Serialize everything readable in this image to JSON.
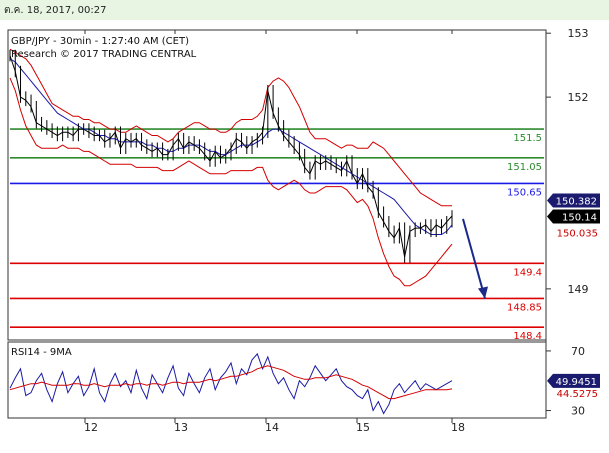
{
  "header": {
    "timestamp": "ต.ค. 18, 2017, 00:27",
    "title": "GBP/JPY - 30min - 1:27:40 AM (CET)",
    "subtitle": "Research © 2017 TRADING CENTRAL"
  },
  "colors": {
    "price": "#000000",
    "bollinger": "#d40000",
    "moving_average": "#1a1aa6",
    "resistance": "#2e8b2e",
    "pivot": "#1a1ae6",
    "support": "#dd0000",
    "forecast_arrow": "#1a2a8a"
  },
  "chart_data": [
    {
      "type": "line",
      "name": "price-panel",
      "title": "GBP/JPY - 30min - 1:27:40 AM (CET)",
      "ylim": [
        148.2,
        153.05
      ],
      "y_ticks": [
        149,
        152,
        153
      ],
      "x_ticks": [
        "12",
        "13",
        "14",
        "15",
        "18"
      ],
      "levels": [
        {
          "label": "151.5",
          "value": 151.5,
          "kind": "resistance"
        },
        {
          "label": "151.05",
          "value": 151.05,
          "kind": "resistance"
        },
        {
          "label": "150.65",
          "value": 150.65,
          "kind": "pivot"
        },
        {
          "label": "149.4",
          "value": 149.4,
          "kind": "support"
        },
        {
          "label": "148.85",
          "value": 148.85,
          "kind": "support"
        },
        {
          "label": "148.4",
          "value": 148.4,
          "kind": "support"
        }
      ],
      "tags": [
        {
          "label": "150.382",
          "value": 150.382,
          "style": "navy"
        },
        {
          "label": "150.14",
          "value": 150.14,
          "style": "black"
        },
        {
          "label": "150.035",
          "value": 150.035,
          "style": "red"
        }
      ],
      "series": [
        {
          "name": "price",
          "values": [
            152.65,
            152.4,
            152.0,
            151.95,
            151.85,
            151.6,
            151.55,
            151.5,
            151.45,
            151.4,
            151.45,
            151.45,
            151.4,
            151.5,
            151.5,
            151.45,
            151.4,
            151.4,
            151.3,
            151.35,
            151.45,
            151.2,
            151.35,
            151.3,
            151.35,
            151.25,
            151.2,
            151.15,
            151.2,
            151.1,
            151.1,
            151.25,
            151.35,
            151.2,
            151.3,
            151.25,
            151.2,
            151.1,
            151.0,
            151.15,
            151.05,
            151.1,
            151.2,
            151.35,
            151.3,
            151.2,
            151.3,
            151.35,
            151.45,
            152.1,
            151.75,
            151.55,
            151.4,
            151.3,
            151.2,
            151.1,
            150.9,
            150.8,
            151.0,
            150.95,
            151.0,
            150.95,
            150.9,
            150.85,
            151.0,
            150.8,
            150.65,
            150.8,
            150.6,
            150.5,
            150.2,
            150.05,
            149.9,
            149.8,
            149.95,
            149.5,
            149.9,
            149.95,
            149.95,
            150.0,
            149.9,
            150.0,
            149.95,
            150.05,
            150.14
          ]
        },
        {
          "name": "bollinger-upper",
          "values": [
            152.75,
            152.7,
            152.65,
            152.6,
            152.5,
            152.35,
            152.2,
            152.05,
            151.9,
            151.85,
            151.8,
            151.75,
            151.7,
            151.7,
            151.65,
            151.65,
            151.6,
            151.6,
            151.55,
            151.5,
            151.5,
            151.45,
            151.45,
            151.5,
            151.55,
            151.5,
            151.45,
            151.4,
            151.4,
            151.35,
            151.3,
            151.35,
            151.45,
            151.5,
            151.55,
            151.6,
            151.6,
            151.55,
            151.5,
            151.5,
            151.45,
            151.45,
            151.5,
            151.6,
            151.65,
            151.65,
            151.65,
            151.7,
            151.8,
            152.15,
            152.25,
            152.3,
            152.25,
            152.15,
            152.0,
            151.85,
            151.65,
            151.45,
            151.35,
            151.35,
            151.35,
            151.3,
            151.25,
            151.2,
            151.25,
            151.25,
            151.2,
            151.2,
            151.2,
            151.3,
            151.25,
            151.2,
            151.1,
            151.0,
            150.9,
            150.8,
            150.7,
            150.6,
            150.5,
            150.45,
            150.4,
            150.35,
            150.3,
            150.3,
            150.3
          ]
        },
        {
          "name": "bollinger-lower",
          "values": [
            152.3,
            152.1,
            151.8,
            151.55,
            151.4,
            151.25,
            151.2,
            151.2,
            151.2,
            151.2,
            151.25,
            151.2,
            151.2,
            151.2,
            151.15,
            151.15,
            151.1,
            151.05,
            151.0,
            150.95,
            150.95,
            150.95,
            150.95,
            150.95,
            150.9,
            150.9,
            150.9,
            150.9,
            150.9,
            150.85,
            150.85,
            150.85,
            150.9,
            150.95,
            151.0,
            150.95,
            150.9,
            150.85,
            150.8,
            150.8,
            150.8,
            150.8,
            150.85,
            150.85,
            150.85,
            150.85,
            150.85,
            150.9,
            150.9,
            150.7,
            150.6,
            150.55,
            150.6,
            150.65,
            150.7,
            150.65,
            150.55,
            150.5,
            150.5,
            150.55,
            150.6,
            150.6,
            150.6,
            150.6,
            150.55,
            150.45,
            150.35,
            150.4,
            150.3,
            150.1,
            149.8,
            149.55,
            149.35,
            149.2,
            149.15,
            149.05,
            149.05,
            149.1,
            149.15,
            149.2,
            149.3,
            149.4,
            149.5,
            149.6,
            149.7
          ]
        },
        {
          "name": "moving-average",
          "values": [
            152.6,
            152.55,
            152.45,
            152.35,
            152.25,
            152.15,
            152.05,
            151.95,
            151.85,
            151.75,
            151.7,
            151.65,
            151.6,
            151.55,
            151.5,
            151.5,
            151.45,
            151.4,
            151.4,
            151.35,
            151.35,
            151.3,
            151.3,
            151.3,
            151.3,
            151.3,
            151.25,
            151.25,
            151.2,
            151.2,
            151.15,
            151.15,
            151.2,
            151.2,
            151.25,
            151.25,
            151.25,
            151.2,
            151.15,
            151.15,
            151.1,
            151.1,
            151.15,
            151.2,
            151.25,
            151.25,
            151.25,
            151.3,
            151.35,
            151.45,
            151.5,
            151.5,
            151.45,
            151.4,
            151.35,
            151.3,
            151.25,
            151.2,
            151.15,
            151.1,
            151.05,
            151.0,
            150.95,
            150.9,
            150.85,
            150.8,
            150.75,
            150.7,
            150.65,
            150.6,
            150.55,
            150.5,
            150.45,
            150.4,
            150.3,
            150.2,
            150.1,
            150.0,
            149.95,
            149.9,
            149.85,
            149.85,
            149.85,
            149.9,
            150.0
          ]
        }
      ],
      "forecast": {
        "from": 150.0,
        "to": 148.85
      }
    },
    {
      "type": "line",
      "name": "rsi-panel",
      "title": "RSI14 - 9MA",
      "ylim": [
        25,
        76
      ],
      "y_ticks": [
        30,
        70
      ],
      "tags": [
        {
          "label": "49.9451",
          "value": 49.9451,
          "style": "navy"
        },
        {
          "label": "44.5275",
          "value": 44.5275,
          "style": "red"
        }
      ],
      "series": [
        {
          "name": "rsi",
          "values": [
            45,
            52,
            58,
            40,
            42,
            50,
            55,
            44,
            36,
            48,
            56,
            42,
            48,
            53,
            40,
            46,
            58,
            42,
            36,
            48,
            55,
            46,
            50,
            42,
            57,
            45,
            38,
            54,
            48,
            42,
            52,
            60,
            45,
            40,
            55,
            48,
            42,
            52,
            58,
            44,
            52,
            56,
            62,
            48,
            58,
            54,
            64,
            68,
            58,
            66,
            55,
            48,
            52,
            44,
            38,
            50,
            46,
            52,
            60,
            55,
            50,
            54,
            58,
            50,
            46,
            44,
            40,
            38,
            44,
            30,
            36,
            28,
            34,
            44,
            48,
            42,
            46,
            50,
            44,
            48,
            46,
            44,
            46,
            48,
            50
          ]
        },
        {
          "name": "rsi-ma",
          "values": [
            44,
            45,
            46,
            47,
            48,
            48,
            49,
            48,
            47,
            47,
            47,
            47,
            48,
            48,
            47,
            47,
            48,
            47,
            46,
            47,
            47,
            47,
            48,
            47,
            48,
            48,
            47,
            48,
            48,
            47,
            48,
            49,
            49,
            48,
            49,
            49,
            49,
            50,
            51,
            50,
            51,
            52,
            53,
            53,
            54,
            55,
            56,
            58,
            59,
            60,
            59,
            58,
            57,
            55,
            53,
            52,
            51,
            51,
            52,
            52,
            52,
            53,
            54,
            53,
            52,
            51,
            49,
            47,
            46,
            44,
            42,
            40,
            38,
            38,
            39,
            40,
            41,
            42,
            43,
            44,
            44,
            44,
            44,
            44,
            44.5
          ]
        }
      ]
    }
  ]
}
